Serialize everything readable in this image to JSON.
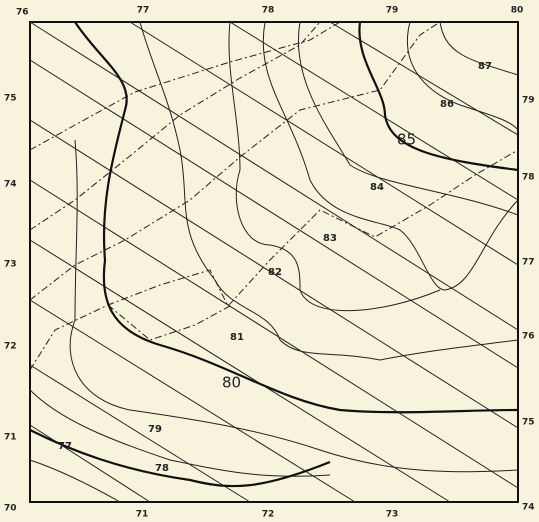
{
  "top_labels": [
    "77",
    "78",
    "79",
    "80"
  ],
  "left_labels": [
    "76",
    "75",
    "74",
    "73",
    "72",
    "71",
    "70"
  ],
  "right_labels": [
    "79",
    "78",
    "77",
    "76",
    "75",
    "74"
  ],
  "bottom_labels": [
    "71",
    "72",
    "73"
  ],
  "contour_labels": [
    "87",
    "86",
    "85",
    "84",
    "83",
    "82",
    "81",
    "80",
    "79",
    "78",
    "77"
  ]
}
